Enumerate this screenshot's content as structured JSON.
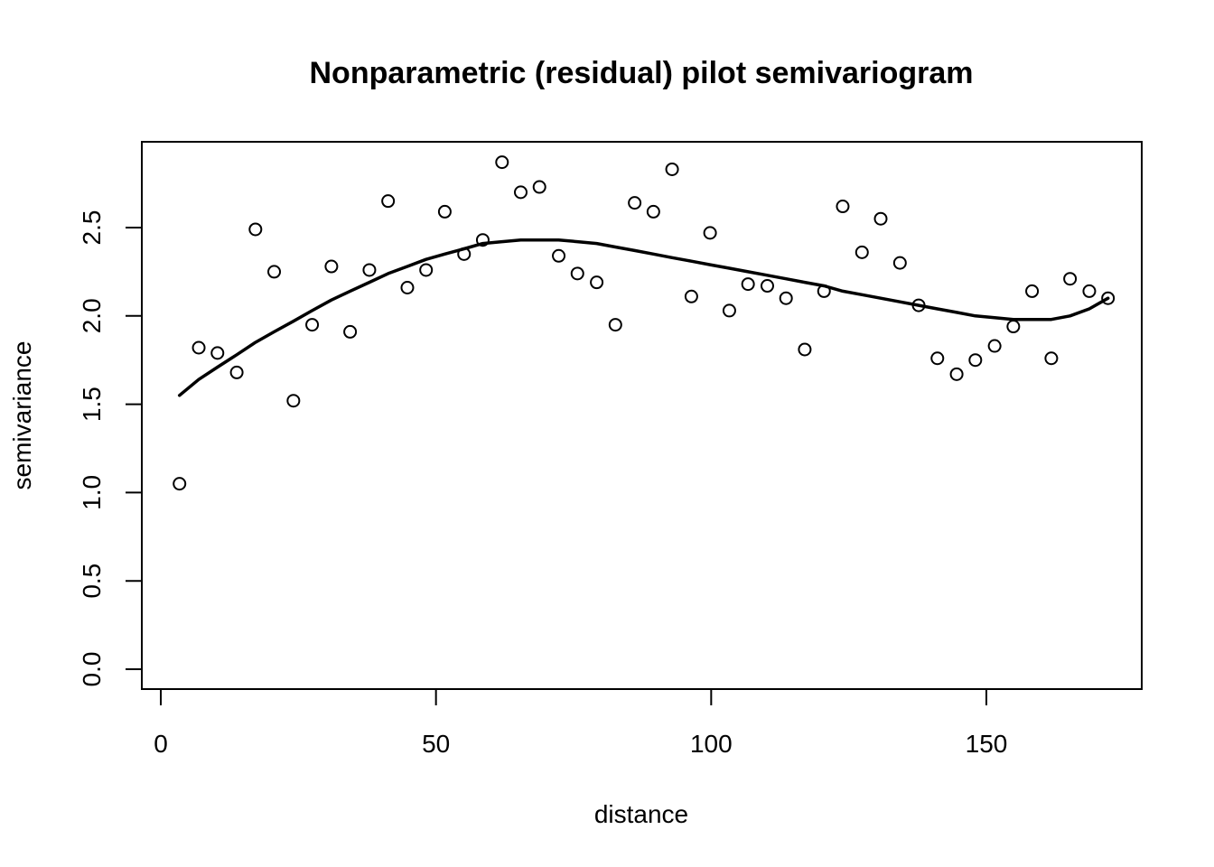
{
  "chart_data": {
    "type": "scatter",
    "title": "Nonparametric (residual) pilot semivariogram",
    "xlabel": "distance",
    "ylabel": "semivariance",
    "xlim": [
      0,
      177
    ],
    "ylim": [
      0,
      2.9
    ],
    "xticks": [
      0,
      50,
      100,
      150
    ],
    "yticks": [
      0.0,
      0.5,
      1.0,
      1.5,
      2.0,
      2.5
    ],
    "xtick_labels": [
      "0",
      "50",
      "100",
      "150"
    ],
    "ytick_labels": [
      "0.0",
      "0.5",
      "1.0",
      "1.5",
      "2.0",
      "2.5"
    ],
    "grid": false,
    "legend": "none",
    "points": {
      "x": [
        3.4,
        6.9,
        10.3,
        13.8,
        17.2,
        20.6,
        24.1,
        27.5,
        31.0,
        34.4,
        37.9,
        41.3,
        44.8,
        48.2,
        51.6,
        55.1,
        58.5,
        62.0,
        65.4,
        68.8,
        72.3,
        75.7,
        79.2,
        82.6,
        86.1,
        89.5,
        92.9,
        96.4,
        99.8,
        103.3,
        106.7,
        110.2,
        113.6,
        117.0,
        120.5,
        123.9,
        127.4,
        130.8,
        134.3,
        137.7,
        141.1,
        144.6,
        148.0,
        151.5,
        154.9,
        158.3,
        161.8,
        165.2,
        168.7,
        172.1
      ],
      "y": [
        1.05,
        1.82,
        1.79,
        1.68,
        2.49,
        2.25,
        1.52,
        1.95,
        2.28,
        1.91,
        2.26,
        2.65,
        2.16,
        2.26,
        2.59,
        2.35,
        2.43,
        2.87,
        2.7,
        2.73,
        2.34,
        2.24,
        2.19,
        1.95,
        2.64,
        2.59,
        2.83,
        2.11,
        2.47,
        2.03,
        2.18,
        2.17,
        2.1,
        1.81,
        2.14,
        2.62,
        2.36,
        2.55,
        2.3,
        2.06,
        1.76,
        1.67,
        1.75,
        1.83,
        1.94,
        2.14,
        1.76,
        2.21,
        2.14,
        2.1
      ]
    },
    "smooth_line": {
      "x": [
        3.4,
        6.9,
        10.3,
        13.8,
        17.2,
        20.6,
        24.1,
        27.5,
        31.0,
        34.4,
        37.9,
        41.3,
        44.8,
        48.2,
        51.6,
        55.1,
        58.5,
        62.0,
        65.4,
        68.8,
        72.3,
        75.7,
        79.2,
        82.6,
        86.1,
        89.5,
        92.9,
        96.4,
        99.8,
        103.3,
        106.7,
        110.2,
        113.6,
        117.0,
        120.5,
        123.9,
        127.4,
        130.8,
        134.3,
        137.7,
        141.1,
        144.6,
        148.0,
        151.5,
        154.9,
        158.3,
        161.8,
        165.2,
        168.7,
        172.1
      ],
      "y": [
        1.55,
        1.64,
        1.71,
        1.78,
        1.85,
        1.91,
        1.97,
        2.03,
        2.09,
        2.14,
        2.19,
        2.24,
        2.28,
        2.32,
        2.35,
        2.38,
        2.41,
        2.42,
        2.43,
        2.43,
        2.43,
        2.42,
        2.41,
        2.39,
        2.37,
        2.35,
        2.33,
        2.31,
        2.29,
        2.27,
        2.25,
        2.23,
        2.21,
        2.19,
        2.17,
        2.14,
        2.12,
        2.1,
        2.08,
        2.06,
        2.04,
        2.02,
        2.0,
        1.99,
        1.98,
        1.98,
        1.98,
        2.0,
        2.04,
        2.1
      ]
    }
  }
}
